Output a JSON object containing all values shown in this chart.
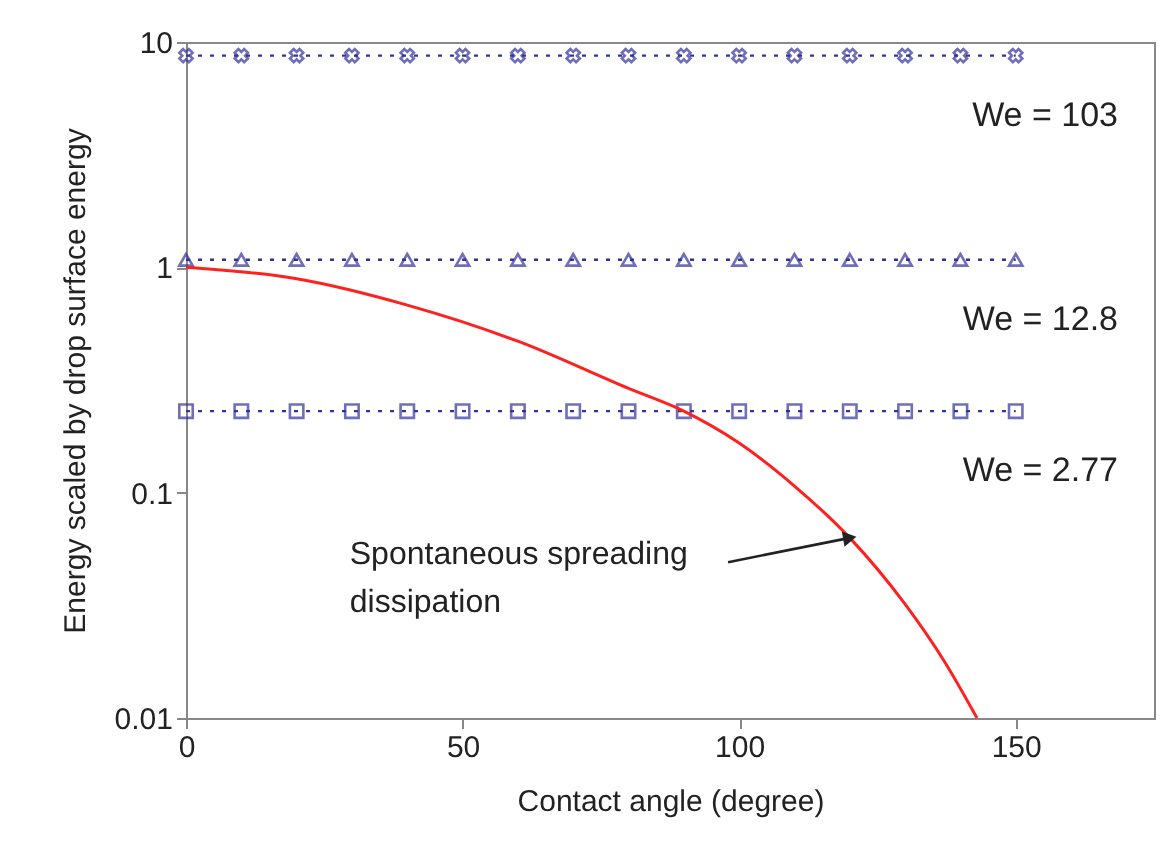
{
  "chart_data": {
    "type": "line",
    "xlabel": "Contact angle (degree)",
    "ylabel": "Energy scaled by drop surface energy",
    "xlim": [
      0,
      175
    ],
    "xticks": [
      0,
      50,
      100,
      150
    ],
    "ylim": [
      0.01,
      10
    ],
    "yticks": [
      0.01,
      0.1,
      1,
      10
    ],
    "log": "y",
    "grid": false,
    "series": [
      {
        "name": "We = 103",
        "color": "#333399",
        "marker": "cross",
        "line_style": "dotted",
        "x": [
          0,
          10,
          20,
          30,
          40,
          50,
          60,
          70,
          80,
          90,
          100,
          110,
          120,
          130,
          140,
          150
        ],
        "values": [
          8.7,
          8.7,
          8.7,
          8.7,
          8.7,
          8.7,
          8.7,
          8.7,
          8.7,
          8.7,
          8.7,
          8.7,
          8.7,
          8.7,
          8.7,
          8.7
        ]
      },
      {
        "name": "We = 12.8",
        "color": "#333399",
        "marker": "triangle",
        "line_style": "dotted",
        "x": [
          0,
          10,
          20,
          30,
          40,
          50,
          60,
          70,
          80,
          90,
          100,
          110,
          120,
          130,
          140,
          150
        ],
        "values": [
          1.08,
          1.08,
          1.08,
          1.08,
          1.08,
          1.08,
          1.08,
          1.08,
          1.08,
          1.08,
          1.08,
          1.08,
          1.08,
          1.08,
          1.08,
          1.08
        ]
      },
      {
        "name": "We = 2.77",
        "color": "#333399",
        "marker": "square",
        "line_style": "dotted",
        "x": [
          0,
          10,
          20,
          30,
          40,
          50,
          60,
          70,
          80,
          90,
          100,
          110,
          120,
          130,
          140,
          150
        ],
        "values": [
          0.23,
          0.23,
          0.23,
          0.23,
          0.23,
          0.23,
          0.23,
          0.23,
          0.23,
          0.23,
          0.23,
          0.23,
          0.23,
          0.23,
          0.23,
          0.23
        ]
      },
      {
        "color": "#ff2020",
        "marker": "none",
        "line_style": "solid",
        "x": [
          0,
          20,
          40,
          60,
          80,
          90,
          100,
          110,
          120,
          130,
          137,
          143
        ],
        "values": [
          1.0,
          0.89,
          0.68,
          0.47,
          0.29,
          0.23,
          0.166,
          0.107,
          0.063,
          0.032,
          0.018,
          0.01
        ]
      }
    ],
    "annotations": [
      {
        "text": "Spontaneous spreading\ndissipation",
        "x": 120,
        "y": 0.063
      }
    ]
  }
}
